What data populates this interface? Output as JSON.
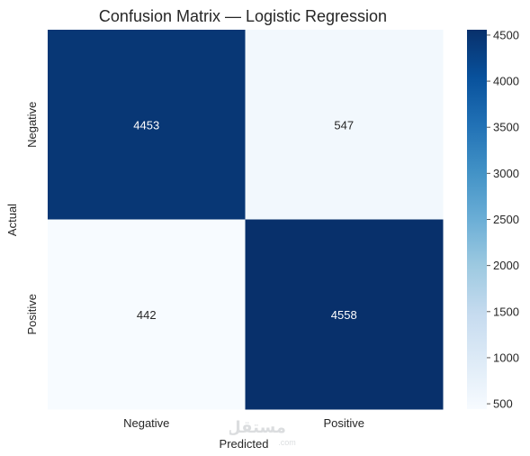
{
  "chart_data": {
    "type": "heatmap",
    "title": "Confusion Matrix — Logistic Regression",
    "xlabel": "Predicted",
    "ylabel": "Actual",
    "x_categories": [
      "Negative",
      "Positive"
    ],
    "y_categories": [
      "Negative",
      "Positive"
    ],
    "values": [
      [
        4453,
        547
      ],
      [
        442,
        4558
      ]
    ],
    "colorbar": {
      "ticks": [
        "500",
        "1000",
        "1500",
        "2000",
        "2500",
        "3000",
        "3500",
        "4000",
        "4500"
      ],
      "range": [
        442,
        4558
      ],
      "colormap": "Blues",
      "low_color": "#f7fbff",
      "high_color": "#08306b"
    }
  },
  "watermark": {
    "text": "مستقل",
    "subtext": ".com"
  }
}
